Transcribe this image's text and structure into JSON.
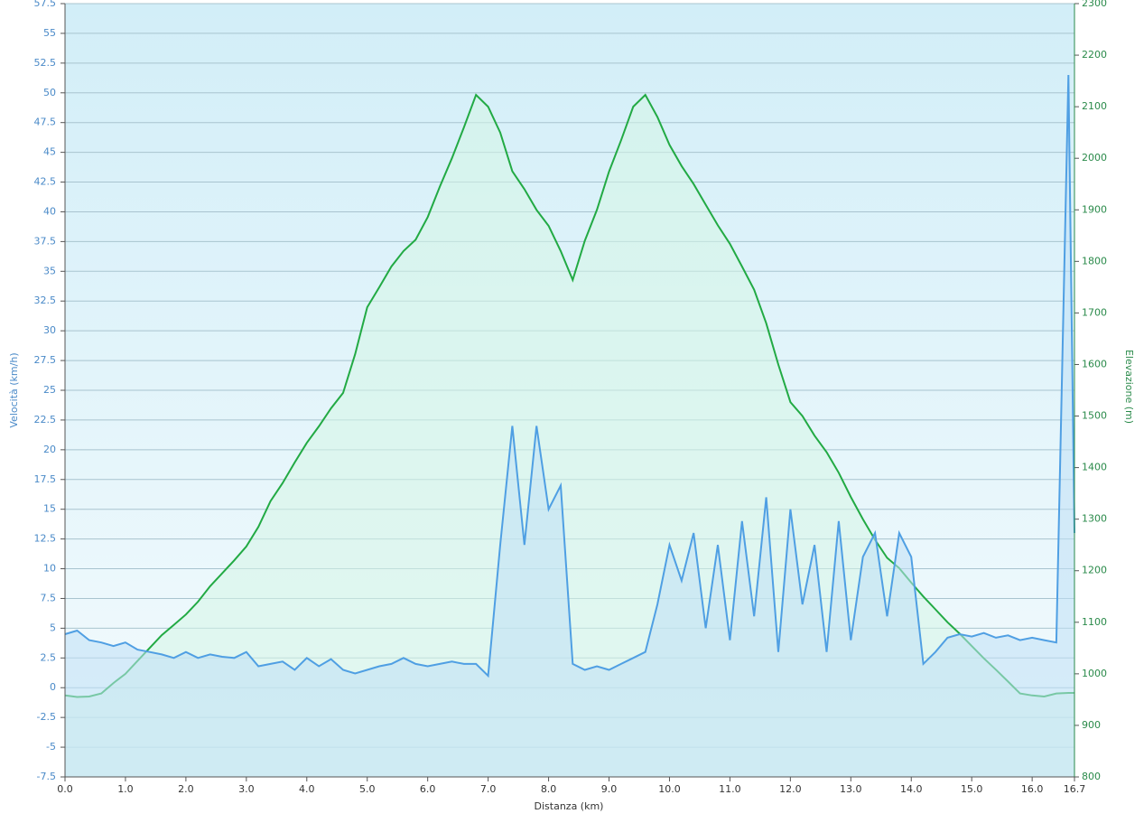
{
  "chart_data": {
    "type": "line",
    "x_label": "Distanza  (km)",
    "y_label": "Velocità (km/h)",
    "y2_label": "Elevazione (m)",
    "x": [
      0,
      0.2,
      0.4,
      0.6,
      0.8,
      1.0,
      1.2,
      1.4,
      1.6,
      1.8,
      2.0,
      2.2,
      2.4,
      2.6,
      2.8,
      3.0,
      3.2,
      3.4,
      3.6,
      3.8,
      4.0,
      4.2,
      4.4,
      4.6,
      4.8,
      5.0,
      5.2,
      5.4,
      5.6,
      5.8,
      6.0,
      6.2,
      6.4,
      6.6,
      6.8,
      7.0,
      7.2,
      7.4,
      7.6,
      7.8,
      8.0,
      8.2,
      8.4,
      8.6,
      8.8,
      9.0,
      9.2,
      9.4,
      9.6,
      9.8,
      10.0,
      10.2,
      10.4,
      10.6,
      10.8,
      11.0,
      11.2,
      11.4,
      11.6,
      11.8,
      12.0,
      12.2,
      12.4,
      12.6,
      12.8,
      13.0,
      13.2,
      13.4,
      13.6,
      13.8,
      14.0,
      14.2,
      14.4,
      14.6,
      14.8,
      15.0,
      15.2,
      15.4,
      15.6,
      15.8,
      16.0,
      16.2,
      16.4,
      16.6,
      16.7
    ],
    "series": [
      {
        "name": "Elevazione",
        "color": "#22aa44",
        "fill": "#d6f5e6",
        "axis": "y2",
        "values": [
          958,
          955,
          956,
          962,
          982,
          1000,
          1025,
          1050,
          1075,
          1095,
          1115,
          1140,
          1170,
          1195,
          1220,
          1247,
          1285,
          1335,
          1370,
          1410,
          1448,
          1480,
          1515,
          1545,
          1620,
          1711,
          1750,
          1790,
          1820,
          1842,
          1886,
          1945,
          2000,
          2060,
          2123,
          2100,
          2050,
          1975,
          1940,
          1900,
          1869,
          1820,
          1764,
          1840,
          1900,
          1974,
          2035,
          2100,
          2123,
          2080,
          2026,
          1985,
          1950,
          1910,
          1870,
          1834,
          1790,
          1745,
          1680,
          1600,
          1527,
          1500,
          1462,
          1430,
          1390,
          1343,
          1300,
          1260,
          1225,
          1205,
          1177,
          1150,
          1125,
          1100,
          1078,
          1054,
          1030,
          1008,
          985,
          962,
          958,
          956,
          962,
          963,
          963
        ]
      },
      {
        "name": "Velocità",
        "color": "#4f9fe3",
        "fill": "#bfe0f5",
        "axis": "y",
        "values": [
          4.5,
          4.8,
          4,
          3.8,
          3.5,
          3.8,
          3.2,
          3,
          2.8,
          2.5,
          3,
          2.5,
          2.8,
          2.6,
          2.5,
          3,
          1.8,
          2,
          2.2,
          1.5,
          2.5,
          1.8,
          2.4,
          1.5,
          1.2,
          1.5,
          1.8,
          2,
          2.5,
          2,
          1.8,
          2,
          2.2,
          2,
          2,
          1,
          12,
          22,
          12,
          22,
          15,
          17,
          2,
          1.5,
          1.8,
          1.5,
          2,
          2.5,
          3,
          7,
          12,
          9,
          13,
          5,
          12,
          4,
          14,
          6,
          16,
          3,
          15,
          7,
          12,
          3,
          14,
          4,
          11,
          13,
          6,
          13,
          11,
          2,
          3,
          4.2,
          4.5,
          4.3,
          4.6,
          4.2,
          4.4,
          4,
          4.2,
          4,
          3.8,
          51.5,
          13
        ]
      }
    ],
    "xlim": [
      0,
      16.7
    ],
    "xticks": [
      {
        "value": 0,
        "label": "0.0"
      },
      {
        "value": 1,
        "label": "1.0"
      },
      {
        "value": 2,
        "label": "2.0"
      },
      {
        "value": 3,
        "label": "3.0"
      },
      {
        "value": 4,
        "label": "4.0"
      },
      {
        "value": 5,
        "label": "5.0"
      },
      {
        "value": 6,
        "label": "6.0"
      },
      {
        "value": 7,
        "label": "7.0"
      },
      {
        "value": 8,
        "label": "8.0"
      },
      {
        "value": 9,
        "label": "9.0"
      },
      {
        "value": 10,
        "label": "10.0"
      },
      {
        "value": 11,
        "label": "11.0"
      },
      {
        "value": 12,
        "label": "12.0"
      },
      {
        "value": 13,
        "label": "13.0"
      },
      {
        "value": 14,
        "label": "14.0"
      },
      {
        "value": 15,
        "label": "15.0"
      },
      {
        "value": 16,
        "label": "16.0"
      },
      16.7
    ],
    "ylim": [
      -7.5,
      57.5
    ],
    "yticks": [
      -7.5,
      -5,
      -2.5,
      0,
      2.5,
      5,
      7.5,
      10,
      12.5,
      15,
      17.5,
      20,
      22.5,
      25,
      27.5,
      30,
      32.5,
      35,
      37.5,
      40,
      42.5,
      45,
      47.5,
      50,
      52.5,
      55,
      57.5
    ],
    "y2lim": [
      800,
      2300
    ],
    "y2ticks": [
      800,
      900,
      1000,
      1100,
      1200,
      1300,
      1400,
      1500,
      1600,
      1700,
      1800,
      1900,
      2000,
      2100,
      2200,
      2300
    ],
    "grid": true
  }
}
